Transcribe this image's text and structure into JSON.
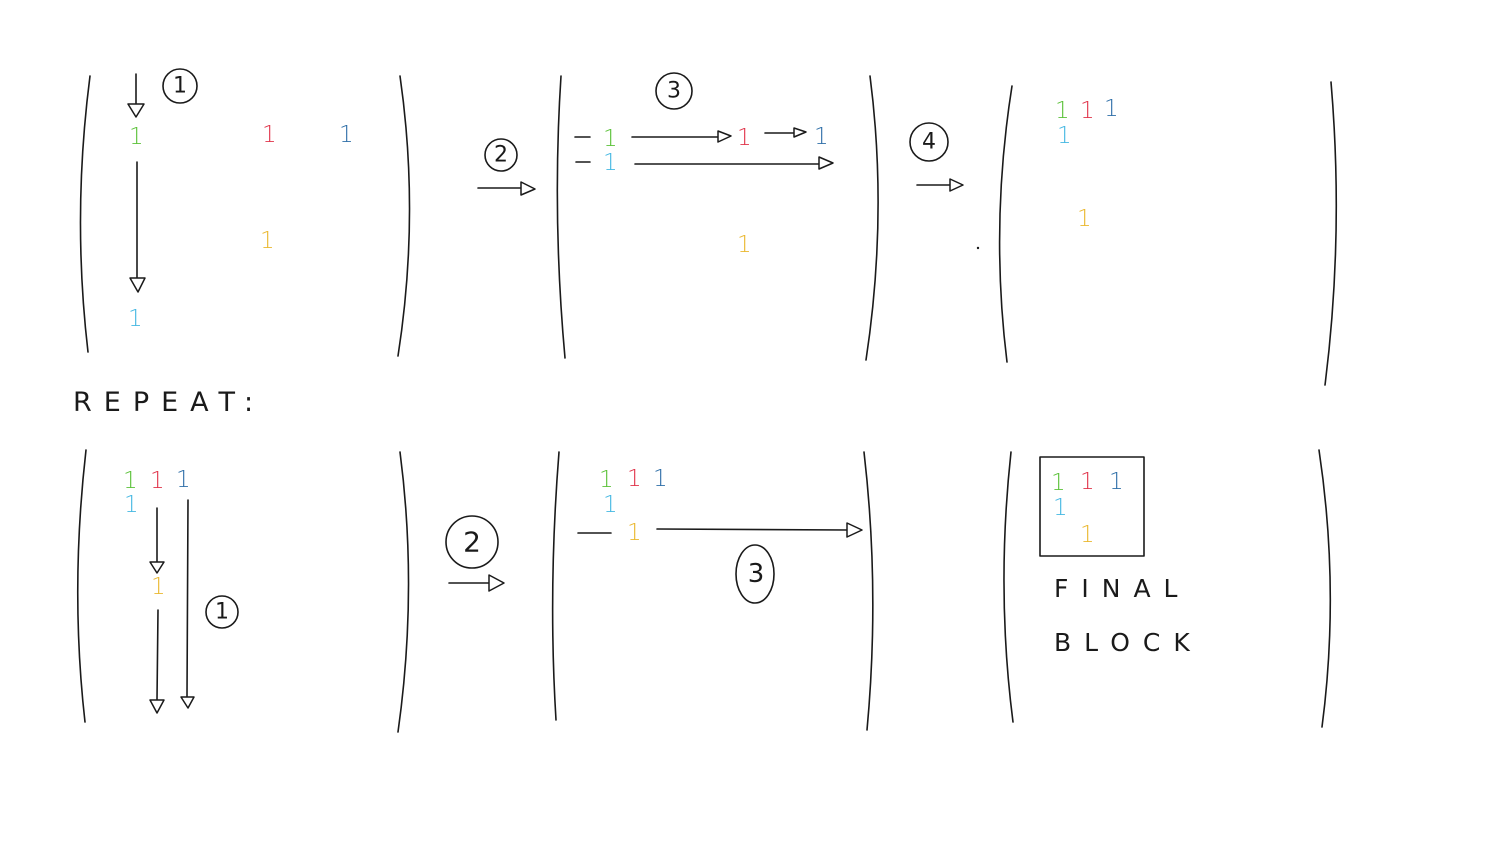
{
  "colors": {
    "ink": "#1a1a1a",
    "green": "#5cc23a",
    "red": "#e0344a",
    "blue": "#2f6fa8",
    "cyan": "#46b8e2",
    "yellow": "#eab830"
  },
  "entry_value": "1",
  "labels": {
    "repeat": "REPEAT:",
    "final": "FINAL",
    "block": "BLOCK"
  },
  "steps": {
    "s1": "1",
    "s2": "2",
    "s3": "3",
    "s4": "4"
  }
}
